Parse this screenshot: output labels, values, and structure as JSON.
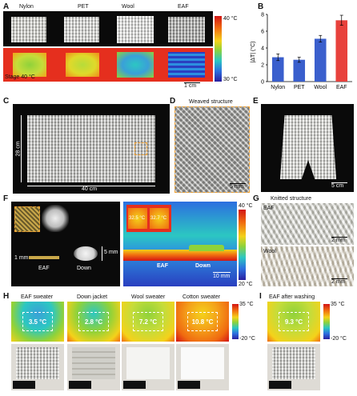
{
  "panel_a": {
    "label": "A",
    "columns": [
      "Nylon",
      "PET",
      "Wool",
      "EAF"
    ],
    "stage_label": "Stage  40 °C",
    "scale": "1 cm",
    "colorbar": {
      "max": "40 °C",
      "min": "30 °C"
    }
  },
  "panel_b": {
    "label": "B",
    "ylabel": "|ΔT| (°C)",
    "yticks": [
      "0",
      "2",
      "4",
      "6",
      "8"
    ]
  },
  "chart_data": {
    "type": "bar",
    "categories": [
      "Nylon",
      "PET",
      "Wool",
      "EAF"
    ],
    "values": [
      2.9,
      2.6,
      5.1,
      7.3
    ],
    "errors": [
      0.4,
      0.3,
      0.4,
      0.6
    ],
    "colors": [
      "#3a5fcd",
      "#3a5fcd",
      "#3a5fcd",
      "#e8413c"
    ],
    "title": "",
    "xlabel": "",
    "ylabel": "|ΔT| (°C)",
    "ylim": [
      0,
      8
    ]
  },
  "panel_c": {
    "label": "C",
    "height": "28 cm",
    "width": "40 cm"
  },
  "panel_d": {
    "label": "D",
    "title": "Weaved structure",
    "scale": "5 mm"
  },
  "panel_e": {
    "label": "E",
    "scale": "5 cm"
  },
  "panel_f": {
    "label": "F",
    "thickness_eaf": "1 mm",
    "thickness_down": "5 mm",
    "eaf": "EAF",
    "down": "Down",
    "temp1": "32.5 °C",
    "temp2": "32.7 °C",
    "scale": "10 mm",
    "colorbar": {
      "max": "40 °C",
      "min": "20 °C"
    }
  },
  "panel_g": {
    "label": "G",
    "title": "Knitted structure",
    "top_label": "EAF",
    "bottom_label": "Wool",
    "scale": "2 mm"
  },
  "panel_h": {
    "label": "H",
    "items": [
      {
        "title": "EAF sweater",
        "temp": "3.5 °C"
      },
      {
        "title": "Down jacket",
        "temp": "2.8 °C"
      },
      {
        "title": "Wool sweater",
        "temp": "7.2 °C"
      },
      {
        "title": "Cotton sweater",
        "temp": "10.8 °C"
      }
    ],
    "colorbar": {
      "max": "35 °C",
      "min": "-20 °C"
    }
  },
  "panel_i": {
    "label": "I",
    "title": "EAF after washing",
    "temp": "9.3 °C",
    "colorbar": {
      "max": "35 °C",
      "min": "-20 °C"
    }
  }
}
